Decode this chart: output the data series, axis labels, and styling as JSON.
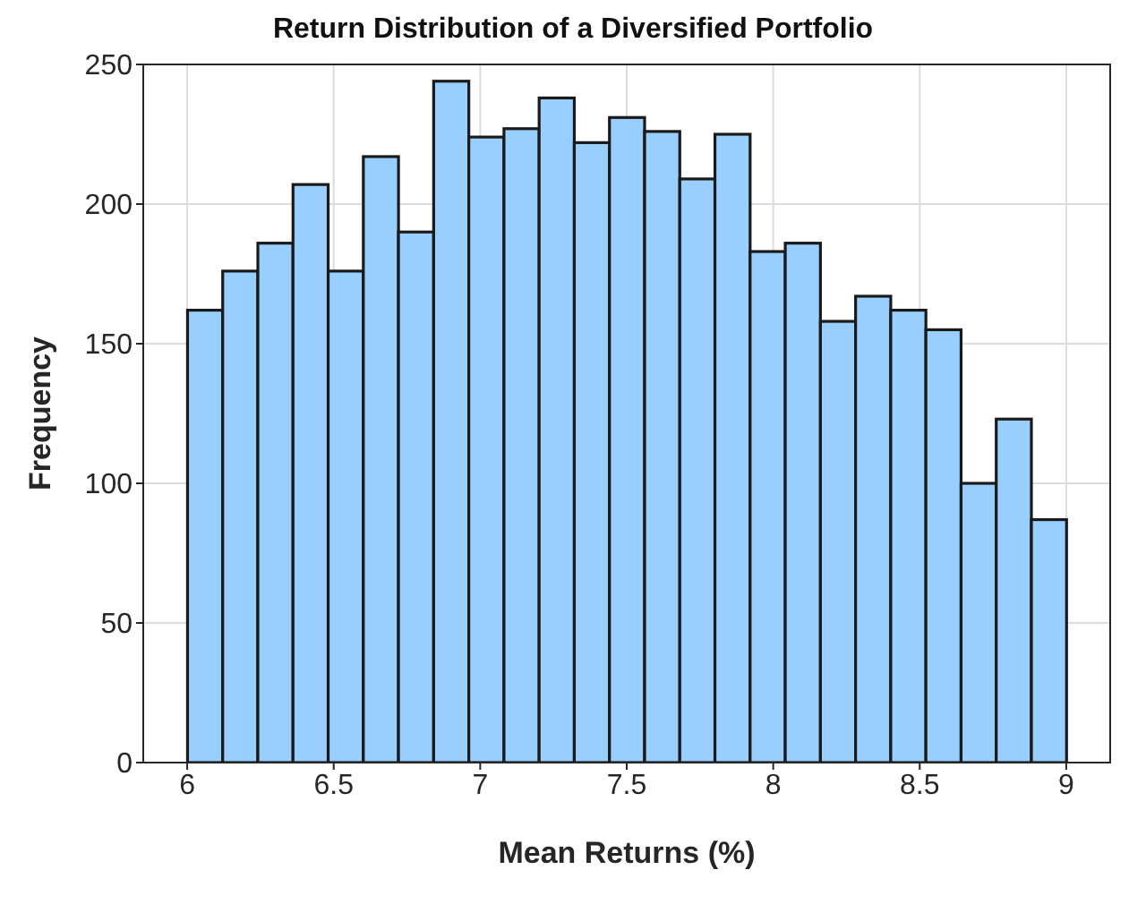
{
  "chart_data": {
    "type": "histogram",
    "title": "Return Distribution of a Diversified Portfolio",
    "xlabel": "Mean Returns (%)",
    "ylabel": "Frequency",
    "bins": [
      6,
      6.12,
      6.24,
      6.36,
      6.48,
      6.6,
      6.72,
      6.84,
      6.96,
      7.08,
      7.2,
      7.32,
      7.44,
      7.56,
      7.68,
      7.8,
      7.92,
      8.04,
      8.16,
      8.28,
      8.4,
      8.52,
      8.64,
      8.76,
      8.88,
      9
    ],
    "values": [
      162,
      176,
      186,
      207,
      176,
      217,
      190,
      244,
      224,
      227,
      238,
      222,
      231,
      226,
      209,
      225,
      183,
      186,
      158,
      167,
      162,
      155,
      100,
      123,
      87
    ],
    "color": "#99cfff",
    "xlim": [
      5.85,
      9.15
    ],
    "xticks": [
      6,
      6.5,
      7,
      7.5,
      8,
      8.5,
      9
    ],
    "ylim": [
      0,
      250
    ],
    "yticks": [
      0,
      50,
      100,
      150,
      200,
      250
    ],
    "grid": true,
    "legend": false
  }
}
